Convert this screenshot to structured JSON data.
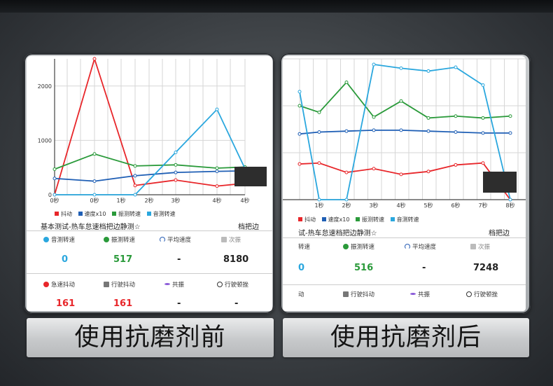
{
  "colors": {
    "shake": "#e8262a",
    "speed": "#1f5fb5",
    "vib": "#2a9a3a",
    "sound": "#2aa7de"
  },
  "left": {
    "chart_data": {
      "type": "line",
      "x_labels": [
        "0秒",
        "0秒",
        "1秒",
        "2秒",
        "3秒",
        "4秒",
        "4秒"
      ],
      "y_ticks": [
        "0",
        "1000",
        "2000"
      ],
      "ylim": [
        0,
        2500
      ],
      "series": [
        {
          "name": "抖动",
          "color_key": "shake",
          "values": [
            0,
            2500,
            170,
            270,
            160,
            210
          ]
        },
        {
          "name": "速度x10",
          "color_key": "speed",
          "values": [
            300,
            250,
            350,
            410,
            430,
            440
          ]
        },
        {
          "name": "振测转速",
          "color_key": "vib",
          "values": [
            470,
            750,
            530,
            550,
            490,
            510
          ]
        },
        {
          "name": "音测转速",
          "color_key": "sound",
          "values": [
            0,
            0,
            0,
            780,
            1570,
            480
          ]
        }
      ]
    },
    "legend": [
      "抖动",
      "速度x10",
      "振测转速",
      "音测转速"
    ],
    "info_title": "基本测试-热车怠速档把边静测☆",
    "info_right": "档把边",
    "row1_labels": [
      "音测转速",
      "振测转速",
      "平均速度",
      "次振"
    ],
    "row1_values": [
      "0",
      "517",
      "-",
      "8180"
    ],
    "row2_labels": [
      "急速抖动",
      "行驶抖动",
      "共振",
      "行驶顿挫"
    ],
    "row2_values": [
      "161",
      "161",
      "-",
      "-"
    ]
  },
  "right": {
    "chart_data": {
      "type": "line",
      "x_labels": [
        "1秒",
        "2秒",
        "3秒",
        "4秒",
        "5秒",
        "6秒",
        "7秒",
        "8秒"
      ],
      "series": [
        {
          "name": "抖动",
          "color_key": "shake",
          "values": [
            380,
            390,
            290,
            330,
            270,
            300,
            370,
            390,
            0
          ]
        },
        {
          "name": "速度x10",
          "color_key": "speed",
          "values": [
            700,
            720,
            730,
            740,
            740,
            730,
            720,
            710,
            710
          ]
        },
        {
          "name": "振测转速",
          "color_key": "vib",
          "values": [
            1000,
            930,
            1250,
            880,
            1050,
            870,
            890,
            870,
            890
          ]
        },
        {
          "name": "音测转速",
          "color_key": "sound",
          "values": [
            1150,
            0,
            0,
            1440,
            1400,
            1370,
            1410,
            1220,
            0
          ]
        }
      ]
    },
    "legend": [
      "抖动",
      "速度x10",
      "振测转速",
      "音测转速"
    ],
    "info_title": "试-热车怠速档把边静测☆",
    "info_right": "档把边",
    "row1_labels": [
      "转速",
      "振测转速",
      "平均速度",
      "次振"
    ],
    "row1_values": [
      "0",
      "516",
      "-",
      "7248"
    ],
    "row2_labels": [
      "动",
      "行驶抖动",
      "共振",
      "行驶顿挫"
    ],
    "row2_values": []
  },
  "captions": {
    "left": "使用抗磨剂前",
    "right": "使用抗磨剂后"
  }
}
